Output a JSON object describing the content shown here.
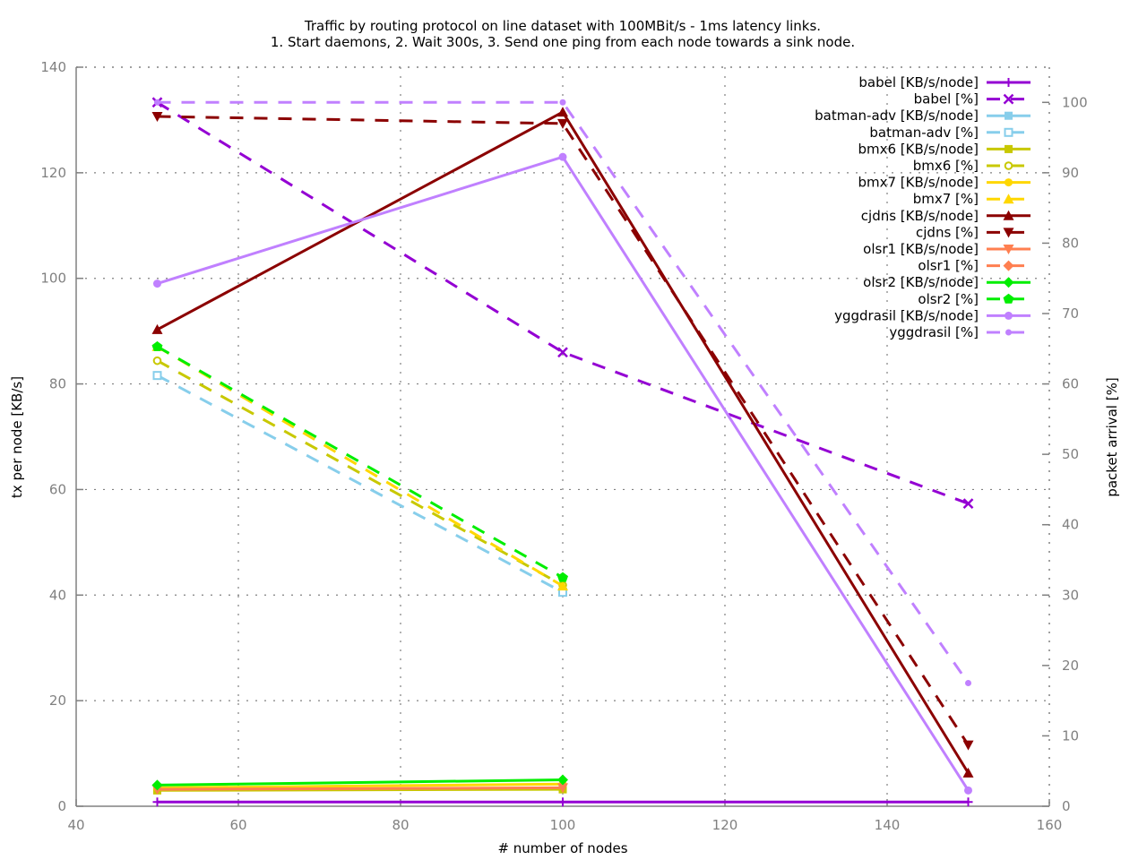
{
  "chart_data": {
    "type": "line",
    "title_lines": [
      "Traffic by routing protocol on line dataset with 100MBit/s - 1ms latency links.",
      "1. Start daemons, 2. Wait 300s, 3. Send one ping from each node towards a sink node."
    ],
    "xlabel": "# number of nodes",
    "ylabel": "tx per node [KB/s]",
    "y2label": "packet arrival [%]",
    "xlim": [
      40,
      160
    ],
    "ylim": [
      0,
      140
    ],
    "y2lim": [
      0,
      105
    ],
    "xticks": [
      "40",
      "60",
      "80",
      "100",
      "120",
      "140",
      "160"
    ],
    "yticks": [
      "0",
      "20",
      "40",
      "60",
      "80",
      "100",
      "120",
      "140"
    ],
    "y2ticks": [
      "0",
      "10",
      "20",
      "30",
      "40",
      "50",
      "60",
      "70",
      "80",
      "90",
      "100"
    ],
    "grid": true,
    "legend_position": "top-right",
    "series": [
      {
        "name": "babel [KB/s/node]",
        "axis": "y1",
        "style": "solid",
        "color": "#9400D3",
        "marker": "plus",
        "x": [
          50,
          100,
          150
        ],
        "values": [
          0.8,
          0.8,
          0.8
        ]
      },
      {
        "name": "babel [%]",
        "axis": "y2",
        "style": "dashed",
        "color": "#9400D3",
        "marker": "cross",
        "x": [
          50,
          100,
          150
        ],
        "values": [
          100,
          64.5,
          43
        ]
      },
      {
        "name": "batman-adv [KB/s/node]",
        "axis": "y1",
        "style": "solid",
        "color": "#87CEEB",
        "marker": "square-filled",
        "x": [
          50,
          100
        ],
        "values": [
          3.2,
          3.3
        ]
      },
      {
        "name": "batman-adv [%]",
        "axis": "y2",
        "style": "dashed",
        "color": "#87CEEB",
        "marker": "square-open",
        "x": [
          50,
          100
        ],
        "values": [
          61.2,
          30.4
        ]
      },
      {
        "name": "bmx6 [KB/s/node]",
        "axis": "y1",
        "style": "solid",
        "color": "#C8C800",
        "marker": "square-filled",
        "x": [
          50,
          100
        ],
        "values": [
          3.0,
          3.2
        ]
      },
      {
        "name": "bmx6 [%]",
        "axis": "y2",
        "style": "dashed",
        "color": "#C8C800",
        "marker": "circle-open",
        "x": [
          50,
          100
        ],
        "values": [
          63.3,
          31.4
        ]
      },
      {
        "name": "bmx7 [KB/s/node]",
        "axis": "y1",
        "style": "solid",
        "color": "#FFD700",
        "marker": "circle-filled",
        "x": [
          50,
          100
        ],
        "values": [
          3.5,
          4.2
        ]
      },
      {
        "name": "bmx7 [%]",
        "axis": "y2",
        "style": "dashed",
        "color": "#FFD700",
        "marker": "triangle-up",
        "x": [
          50,
          100
        ],
        "values": [
          65.3,
          31.3
        ]
      },
      {
        "name": "cjdns [KB/s/node]",
        "axis": "y1",
        "style": "solid",
        "color": "#8B0000",
        "marker": "triangle-up",
        "x": [
          50,
          100,
          150
        ],
        "values": [
          90.3,
          131.5,
          6.3
        ]
      },
      {
        "name": "cjdns [%]",
        "axis": "y2",
        "style": "dashed",
        "color": "#8B0000",
        "marker": "triangle-down",
        "x": [
          50,
          100,
          150
        ],
        "values": [
          98,
          97,
          8.7
        ]
      },
      {
        "name": "olsr1 [KB/s/node]",
        "axis": "y1",
        "style": "solid",
        "color": "#FF7F50",
        "marker": "triangle-down",
        "x": [
          50,
          100
        ],
        "values": [
          3.2,
          3.5
        ]
      },
      {
        "name": "olsr1 [%]",
        "axis": "y2",
        "style": "dashed",
        "color": "#FF7F50",
        "marker": "diamond",
        "x": [
          50,
          100
        ],
        "values": [
          null,
          null
        ]
      },
      {
        "name": "olsr2 [KB/s/node]",
        "axis": "y1",
        "style": "solid",
        "color": "#00EE00",
        "marker": "diamond",
        "x": [
          50,
          100
        ],
        "values": [
          4.0,
          5.0
        ]
      },
      {
        "name": "olsr2 [%]",
        "axis": "y2",
        "style": "dashed",
        "color": "#00EE00",
        "marker": "pentagon",
        "x": [
          50,
          100
        ],
        "values": [
          65.3,
          32.5
        ]
      },
      {
        "name": "yggdrasil [KB/s/node]",
        "axis": "y1",
        "style": "solid",
        "color": "#C080FF",
        "marker": "circle-filled",
        "x": [
          50,
          100,
          150
        ],
        "values": [
          99,
          123,
          3.0
        ]
      },
      {
        "name": "yggdrasil [%]",
        "axis": "y2",
        "style": "dashed",
        "color": "#C080FF",
        "marker": "dot",
        "x": [
          50,
          100,
          150
        ],
        "values": [
          100,
          100,
          17.5
        ]
      }
    ]
  }
}
